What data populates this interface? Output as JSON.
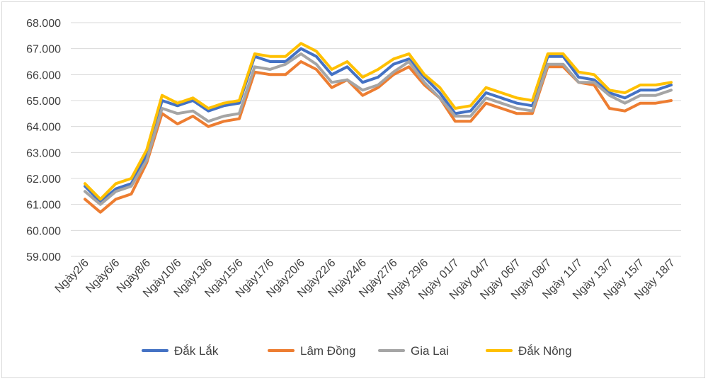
{
  "chart_data": {
    "type": "line",
    "title": "",
    "xlabel": "",
    "ylabel": "",
    "ylim": [
      59000,
      68000
    ],
    "y_ticks": [
      "59.000",
      "60.000",
      "61.000",
      "62.000",
      "63.000",
      "64.000",
      "65.000",
      "66.000",
      "67.000",
      "68.000"
    ],
    "grid": true,
    "legend_position": "bottom",
    "tick_labels": [
      "Ngày2/6",
      "Ngày6/6",
      "Ngày8/6",
      "Ngày10/6",
      "Ngày13/6",
      "Ngày15/6",
      "Ngày17/6",
      "Ngày20/6",
      "Ngày22/6",
      "Ngày24/6",
      "Ngày27/6",
      "Ngày 29/6",
      "Ngày 01/7",
      "Ngày 04/7",
      "Ngày 06/7",
      "Ngày 08/7",
      "Ngày 11/7",
      "Ngày 13/7",
      "Ngày 15/7",
      "Ngày 18/7"
    ],
    "series": [
      {
        "name": "Đắk Lắk",
        "color": "#4472c4",
        "values": [
          61700,
          61100,
          61600,
          61800,
          62900,
          65000,
          64800,
          65000,
          64600,
          64800,
          64900,
          66700,
          66500,
          66500,
          67000,
          66700,
          66000,
          66300,
          65700,
          65900,
          66400,
          66600,
          65900,
          65300,
          64500,
          64600,
          65300,
          65100,
          64900,
          64800,
          66700,
          66700,
          65900,
          65800,
          65300,
          65100,
          65400,
          65400,
          65600
        ],
        "markers": [
          2,
          3,
          9
        ]
      },
      {
        "name": "Lâm Đồng",
        "color": "#ed7d31",
        "values": [
          61200,
          60700,
          61200,
          61400,
          62600,
          64500,
          64100,
          64400,
          64000,
          64200,
          64300,
          66100,
          66000,
          66000,
          66500,
          66200,
          65500,
          65800,
          65200,
          65500,
          66000,
          66300,
          65600,
          65100,
          64200,
          64200,
          64900,
          64700,
          64500,
          64500,
          66300,
          66300,
          65700,
          65600,
          64700,
          64600,
          64900,
          64900,
          65000
        ],
        "markers": [
          3,
          9
        ]
      },
      {
        "name": "Gia Lai",
        "color": "#a5a5a5",
        "values": [
          61500,
          61000,
          61500,
          61700,
          62700,
          64700,
          64500,
          64600,
          64200,
          64400,
          64500,
          66300,
          66200,
          66400,
          66800,
          66400,
          65700,
          65800,
          65400,
          65600,
          66100,
          66500,
          65700,
          65100,
          64400,
          64400,
          65100,
          64900,
          64700,
          64600,
          66400,
          66400,
          65700,
          65700,
          65200,
          64900,
          65200,
          65200,
          65400
        ],
        "markers": [
          3,
          9
        ]
      },
      {
        "name": "Đắk Nông",
        "color": "#ffc000",
        "values": [
          61800,
          61200,
          61800,
          62000,
          63100,
          65200,
          64900,
          65100,
          64700,
          64900,
          65000,
          66800,
          66700,
          66700,
          67200,
          66900,
          66200,
          66500,
          65900,
          66200,
          66600,
          66800,
          66000,
          65500,
          64700,
          64800,
          65500,
          65300,
          65100,
          65000,
          66800,
          66800,
          66100,
          66000,
          65400,
          65300,
          65600,
          65600,
          65700
        ],
        "markers": [
          3,
          9
        ]
      }
    ],
    "series_order": [
      "Đắk Lắk",
      "Lâm Đồng",
      "Gia Lai",
      "Đắk Nông"
    ]
  }
}
